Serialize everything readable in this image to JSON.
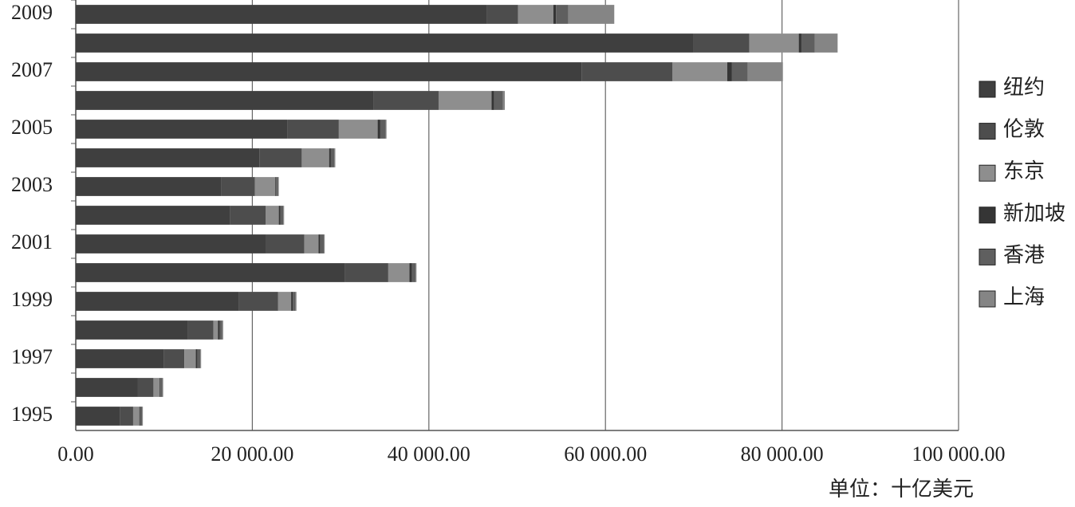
{
  "chart_data": {
    "type": "stacked-bar-horizontal",
    "categories": [
      "1995",
      null,
      "1997",
      null,
      "1999",
      null,
      "2001",
      null,
      "2003",
      null,
      "2005",
      null,
      "2007",
      null,
      "2009"
    ],
    "series": [
      {
        "name": "纽约",
        "color": "#3f3f3f",
        "values": [
          5000,
          7000,
          10000,
          12700,
          18500,
          30500,
          21500,
          17500,
          16500,
          20800,
          24000,
          33700,
          57300,
          70000,
          46600
        ]
      },
      {
        "name": "伦敦",
        "color": "#4d4d4d",
        "values": [
          1500,
          1800,
          2300,
          2900,
          4400,
          4900,
          4400,
          4000,
          3800,
          4800,
          5800,
          7400,
          10300,
          6300,
          3500
        ]
      },
      {
        "name": "东京",
        "color": "#8e8e8e",
        "values": [
          700,
          700,
          1300,
          500,
          1500,
          2400,
          1600,
          1500,
          2300,
          3100,
          4400,
          6000,
          6200,
          5600,
          4000
        ]
      },
      {
        "name": "新加坡",
        "color": "#353535",
        "values": [
          100,
          100,
          200,
          200,
          200,
          300,
          200,
          200,
          100,
          200,
          300,
          300,
          500,
          300,
          300
        ]
      },
      {
        "name": "香港",
        "color": "#5f5f5f",
        "values": [
          200,
          200,
          300,
          300,
          300,
          400,
          400,
          300,
          200,
          400,
          600,
          1000,
          1800,
          1500,
          1400
        ]
      },
      {
        "name": "上海",
        "color": "#858585",
        "values": [
          100,
          100,
          100,
          100,
          100,
          100,
          100,
          100,
          100,
          100,
          100,
          200,
          4000,
          2600,
          5200
        ]
      }
    ],
    "xlim": [
      0,
      100000
    ],
    "xticks": [
      {
        "value": 0,
        "label": "0.00"
      },
      {
        "value": 20000,
        "label": "20 000.00"
      },
      {
        "value": 40000,
        "label": "40 000.00"
      },
      {
        "value": 60000,
        "label": "60 000.00"
      },
      {
        "value": 80000,
        "label": "80 000.00"
      },
      {
        "value": 100000,
        "label": "100 000.00"
      }
    ],
    "grid": true,
    "legend": "right",
    "unit_label": "单位：十亿美元"
  }
}
